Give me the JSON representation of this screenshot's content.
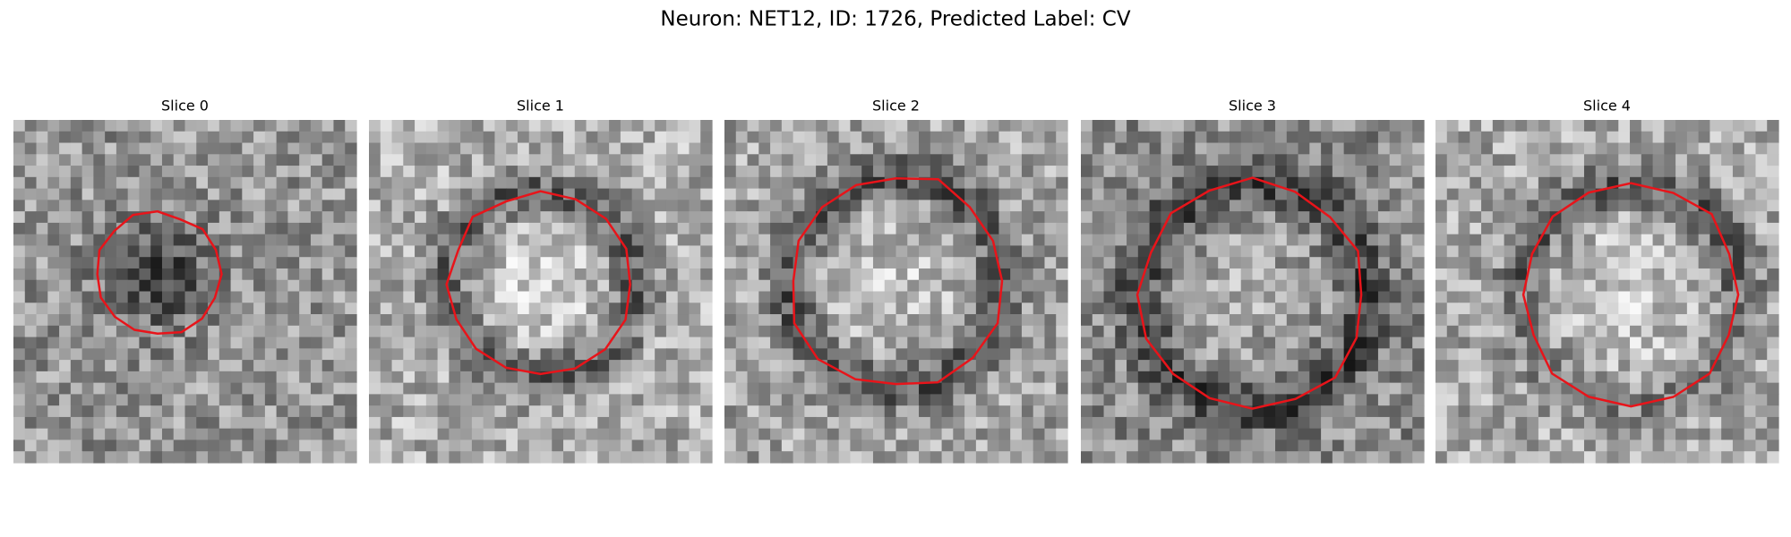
{
  "title": "Neuron: NET12, ID: 1726, Predicted Label: CV",
  "panels": [
    {
      "label": "Slice 0"
    },
    {
      "label": "Slice 1"
    },
    {
      "label": "Slice 2"
    },
    {
      "label": "Slice 3"
    },
    {
      "label": "Slice 4"
    }
  ]
}
